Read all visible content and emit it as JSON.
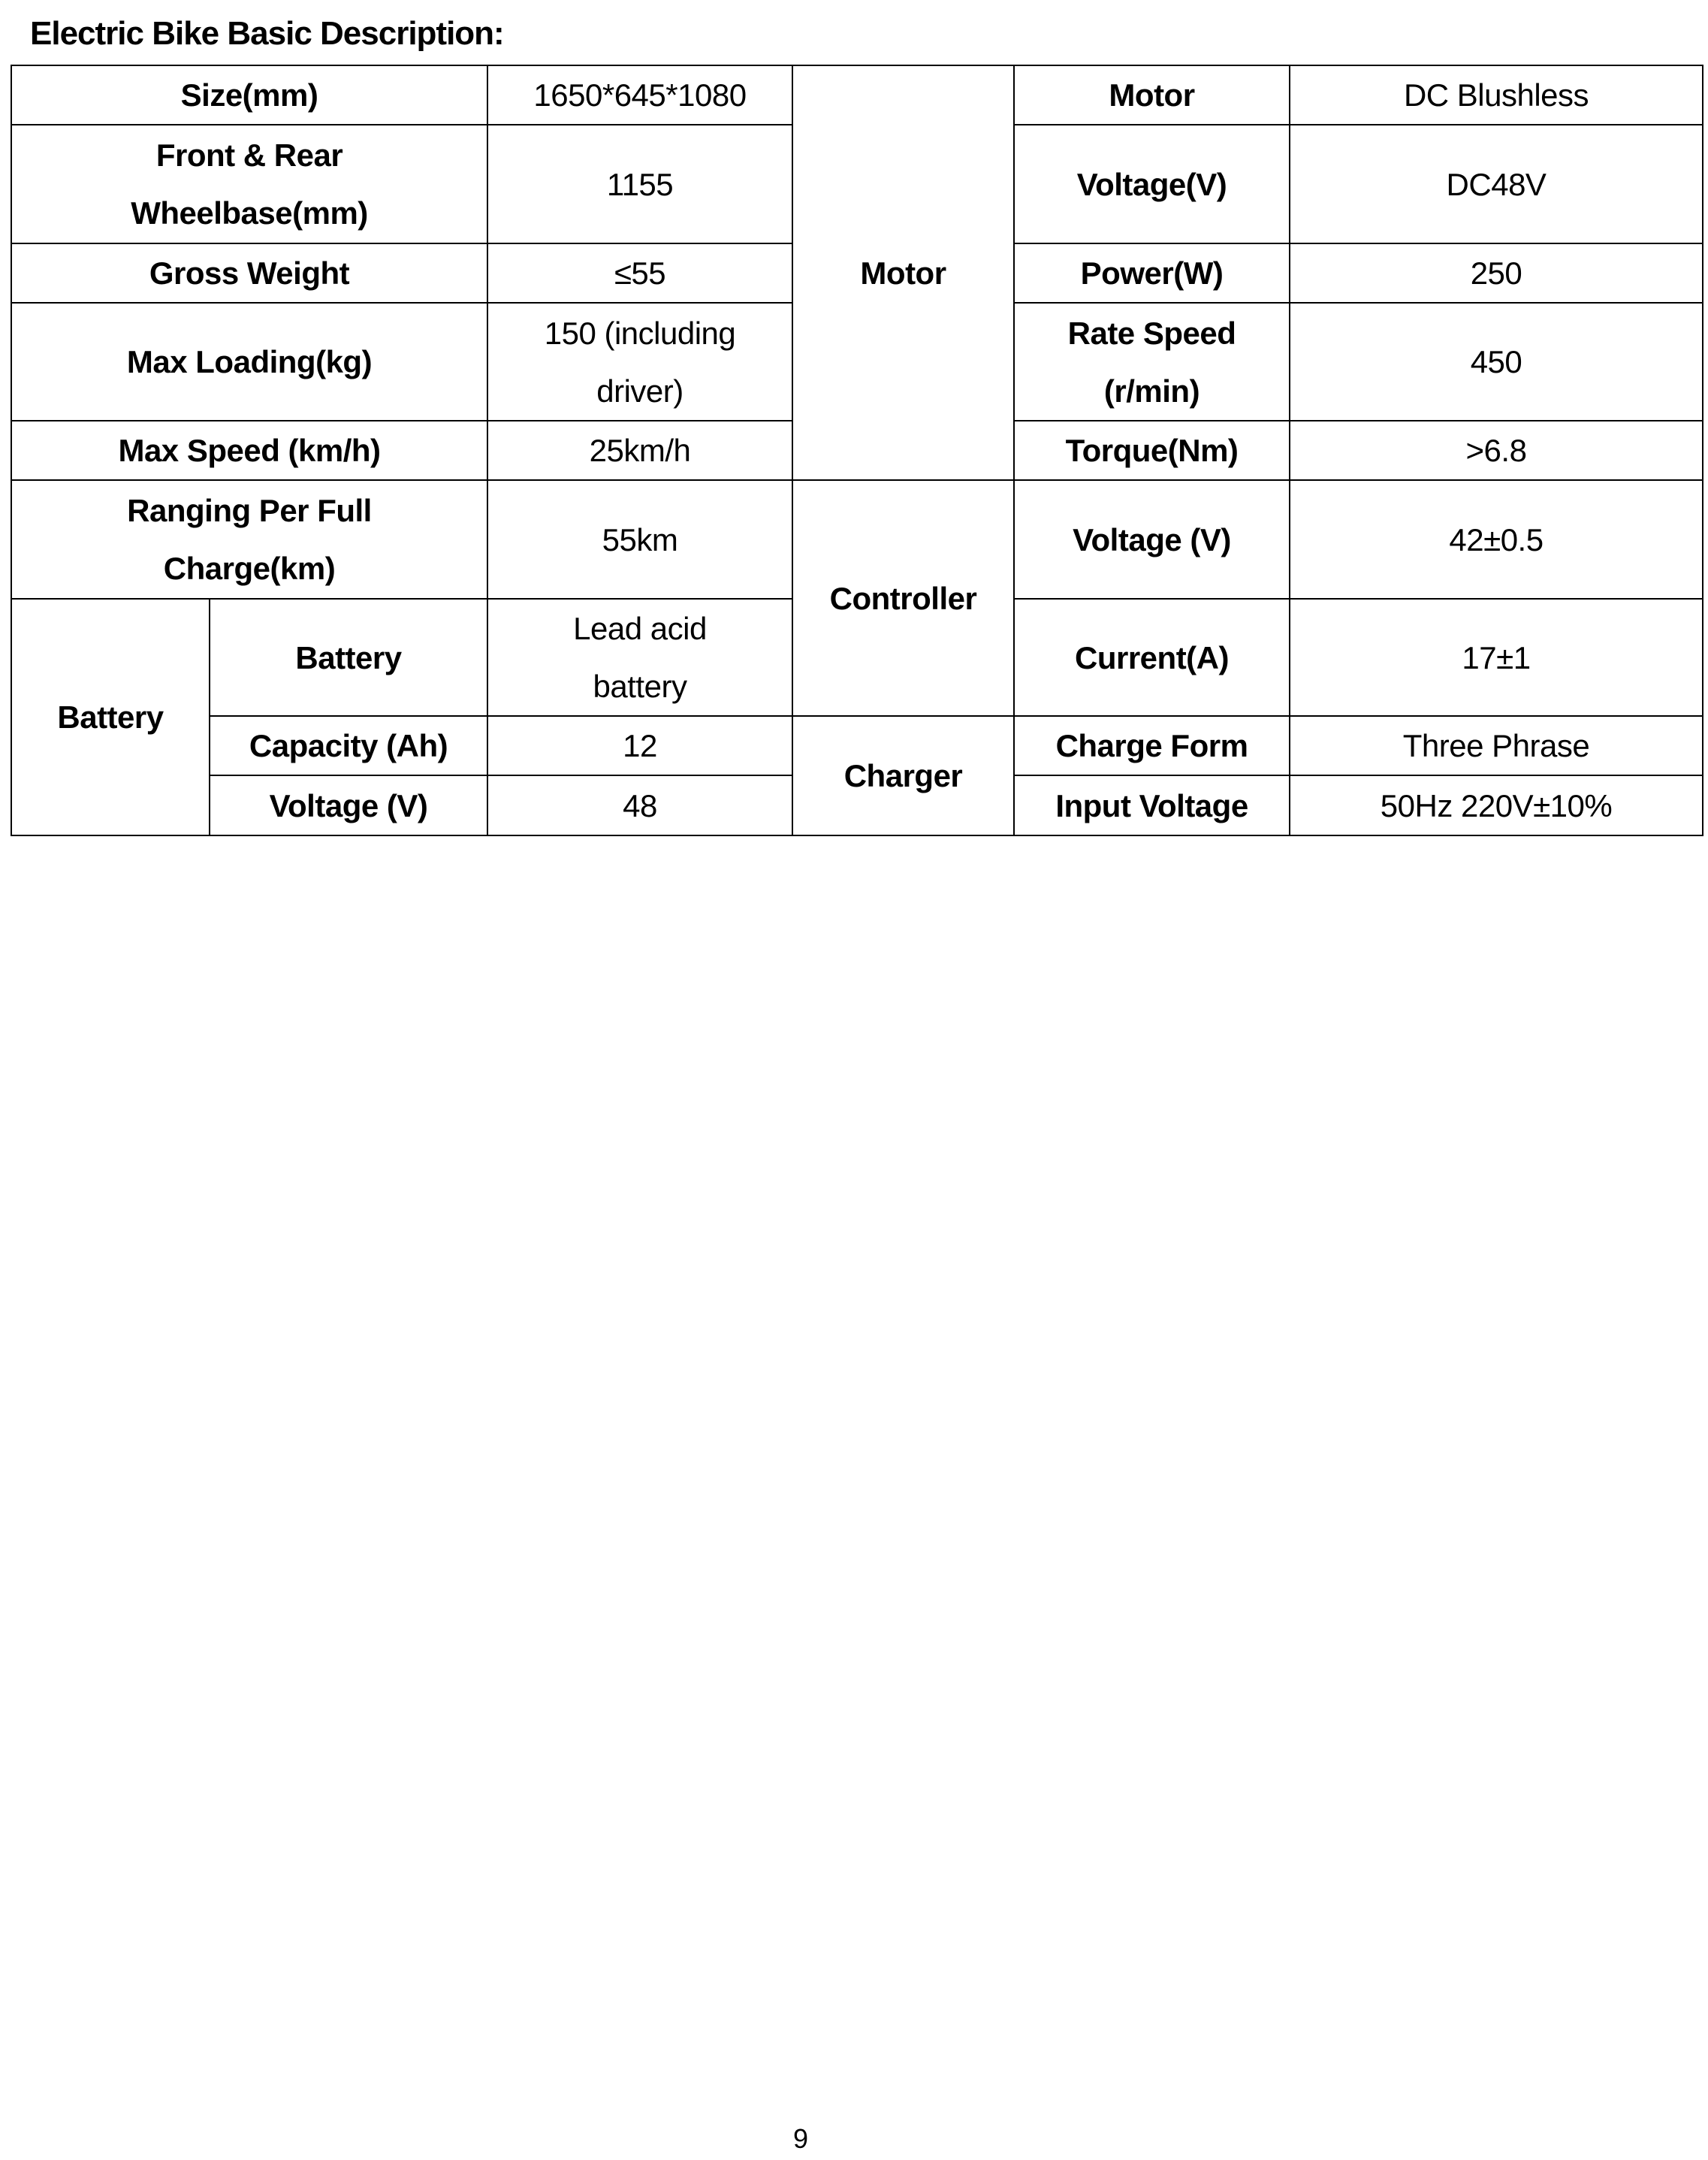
{
  "title": "Electric Bike Basic Description:",
  "table": {
    "size_label": "Size(mm)",
    "size_value": "1650*645*1080",
    "wheelbase_label": "Front & Rear\nWheelbase(mm)",
    "wheelbase_value": "1155",
    "weight_label": "Gross Weight",
    "weight_value": "≤55",
    "loading_label": "Max Loading(kg)",
    "loading_value": "150 (including\ndriver)",
    "speed_label": "Max Speed (km/h)",
    "speed_value": "25km/h",
    "range_label": "Ranging Per Full\nCharge(km)",
    "range_value": "55km",
    "battery_group": "Battery",
    "battery_label": "Battery",
    "battery_value": "Lead acid\nbattery",
    "capacity_label": "Capacity (Ah)",
    "capacity_value": "12",
    "bvoltage_label": "Voltage (V)",
    "bvoltage_value": "48",
    "motor_group": "Motor",
    "motor_label": "Motor",
    "motor_value": "DC Blushless",
    "mvoltage_label": "Voltage(V)",
    "mvoltage_value": "DC48V",
    "power_label": "Power(W)",
    "power_value": "250",
    "rate_label": "Rate Speed\n(r/min)",
    "rate_value": "450",
    "torque_label": "Torque(Nm)",
    "torque_value": ">6.8",
    "controller_group": "Controller",
    "cvoltage_label": "Voltage (V)",
    "cvoltage_value": "42±0.5",
    "current_label": "Current(A)",
    "current_value": "17±1",
    "charger_group": "Charger",
    "chargeform_label": "Charge Form",
    "chargeform_value": "Three Phrase",
    "input_label": "Input Voltage",
    "input_value": "50Hz 220V±10%"
  },
  "page_number": "9"
}
